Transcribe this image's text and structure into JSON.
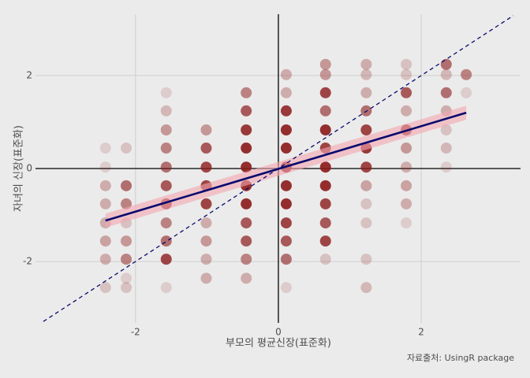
{
  "chart_data": {
    "type": "scatter",
    "x_label": "부모의 평균신장(표준화)",
    "y_label": "자녀의 신장(표준화)",
    "caption": "자료출처: UsingR package",
    "xlim": [
      -3.4,
      3.39
    ],
    "ylim": [
      -3.32,
      3.32
    ],
    "xticks": [
      -2,
      0,
      2
    ],
    "yticks": [
      -2,
      0,
      2
    ],
    "grid": true,
    "zero_lines": true,
    "color": "#8b1a1a",
    "x": [
      -2.42,
      -2.42,
      -2.42,
      -2.42,
      -2.42,
      -2.42,
      -2.42,
      -2.42,
      -2.13,
      -2.13,
      -2.13,
      -2.13,
      -2.13,
      -2.13,
      -2.13,
      -2.13,
      -1.57,
      -1.57,
      -1.57,
      -1.57,
      -1.57,
      -1.57,
      -1.57,
      -1.57,
      -1.57,
      -1.57,
      -1.57,
      -1.01,
      -1.01,
      -1.01,
      -1.01,
      -1.01,
      -1.01,
      -1.01,
      -1.01,
      -1.01,
      -0.45,
      -0.45,
      -0.45,
      -0.45,
      -0.45,
      -0.45,
      -0.45,
      -0.45,
      -0.45,
      -0.45,
      -0.45,
      0.11,
      0.11,
      0.11,
      0.11,
      0.11,
      0.11,
      0.11,
      0.11,
      0.11,
      0.11,
      0.11,
      0.11,
      0.66,
      0.66,
      0.66,
      0.66,
      0.66,
      0.66,
      0.66,
      0.66,
      0.66,
      0.66,
      0.66,
      0.66,
      1.23,
      1.23,
      1.23,
      1.23,
      1.23,
      1.23,
      1.23,
      1.23,
      1.23,
      1.23,
      1.23,
      1.23,
      1.79,
      1.79,
      1.79,
      1.79,
      1.79,
      1.79,
      1.79,
      1.79,
      1.79,
      1.79,
      2.35,
      2.35,
      2.35,
      2.35,
      2.35,
      2.35,
      2.35,
      2.63,
      2.63
    ],
    "y": [
      0.44,
      0.03,
      -0.37,
      -0.76,
      -1.17,
      -1.56,
      -1.95,
      -2.56,
      0.44,
      -0.37,
      -0.76,
      -1.17,
      -1.56,
      -1.95,
      -2.36,
      -2.56,
      1.63,
      1.24,
      0.83,
      0.44,
      0.03,
      -0.37,
      -0.76,
      -1.17,
      -1.56,
      -1.95,
      -2.56,
      0.83,
      0.44,
      0.03,
      -0.37,
      -0.76,
      -1.17,
      -1.56,
      -1.95,
      -2.36,
      1.63,
      1.24,
      0.83,
      0.44,
      0.03,
      -0.37,
      -0.76,
      -1.17,
      -1.56,
      -1.95,
      -2.36,
      2.02,
      1.63,
      1.24,
      0.83,
      0.44,
      0.03,
      -0.37,
      -0.76,
      -1.17,
      -1.56,
      -1.95,
      -2.56,
      2.24,
      2.02,
      1.63,
      1.24,
      0.83,
      0.44,
      0.03,
      -0.37,
      -0.76,
      -1.17,
      -1.56,
      -1.95,
      2.24,
      2.02,
      1.63,
      1.24,
      0.83,
      0.44,
      0.03,
      -0.37,
      -0.76,
      -1.17,
      -1.95,
      -2.56,
      2.24,
      2.02,
      1.63,
      1.24,
      0.83,
      0.44,
      0.03,
      -0.37,
      -0.76,
      -1.17,
      2.24,
      2.02,
      1.63,
      1.24,
      0.83,
      0.44,
      0.03,
      2.02,
      1.63
    ],
    "alpha": [
      0.15,
      0.15,
      0.3,
      0.3,
      0.3,
      0.35,
      0.3,
      0.2,
      0.2,
      0.6,
      0.5,
      0.2,
      0.4,
      0.5,
      0.15,
      0.2,
      0.15,
      0.25,
      0.4,
      0.5,
      0.6,
      0.7,
      0.8,
      0.5,
      0.6,
      0.8,
      0.15,
      0.4,
      0.7,
      0.8,
      0.8,
      0.8,
      0.3,
      0.4,
      0.3,
      0.3,
      0.5,
      0.7,
      0.85,
      0.9,
      0.9,
      0.9,
      0.9,
      0.7,
      0.7,
      0.5,
      0.3,
      0.3,
      0.3,
      0.85,
      0.9,
      0.9,
      0.9,
      0.9,
      0.9,
      0.8,
      0.7,
      0.6,
      0.15,
      0.4,
      0.4,
      0.8,
      0.6,
      0.9,
      0.8,
      0.9,
      0.9,
      0.8,
      0.7,
      0.8,
      0.2,
      0.3,
      0.25,
      0.3,
      0.6,
      0.8,
      0.85,
      0.8,
      0.35,
      0.2,
      0.2,
      0.2,
      0.25,
      0.2,
      0.2,
      0.7,
      0.3,
      0.8,
      0.4,
      0.3,
      0.35,
      0.3,
      0.15,
      0.6,
      0.25,
      0.6,
      0.3,
      0.2,
      0.25,
      0.15,
      0.5,
      0.15
    ],
    "regression": {
      "color": "#0a0a6e",
      "x": [
        -2.42,
        2.63
      ],
      "y": [
        -1.12,
        1.2
      ],
      "band_color": "#f4a6b0",
      "lower": [
        -1.27,
        1.05
      ],
      "upper": [
        -0.97,
        1.35
      ]
    },
    "diagonal": {
      "color": "#0a0a6e",
      "x": [
        -3.29,
        3.29
      ],
      "y": [
        -3.29,
        3.29
      ]
    }
  }
}
